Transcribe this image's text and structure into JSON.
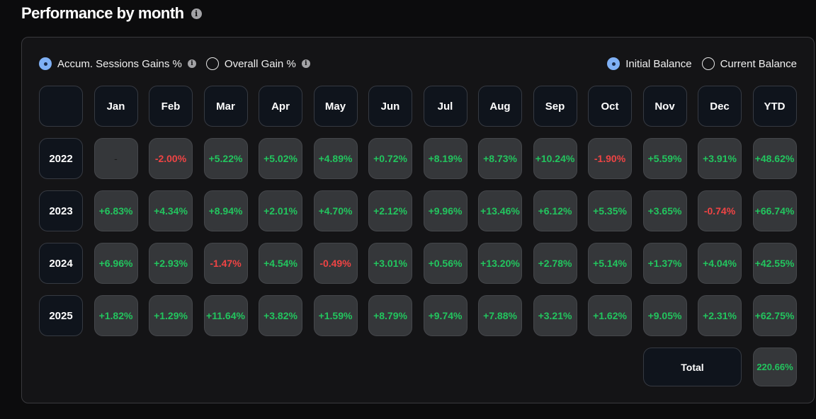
{
  "header": {
    "title": "Performance by month",
    "info_icon": "info-icon"
  },
  "toggles": {
    "left": [
      {
        "label": "Accum. Sessions Gains %",
        "selected": true,
        "has_info": true
      },
      {
        "label": "Overall Gain %",
        "selected": false,
        "has_info": true
      }
    ],
    "right": [
      {
        "label": "Initial Balance",
        "selected": true
      },
      {
        "label": "Current Balance",
        "selected": false
      }
    ]
  },
  "table": {
    "columns": [
      "",
      "Jan",
      "Feb",
      "Mar",
      "Apr",
      "May",
      "Jun",
      "Jul",
      "Aug",
      "Sep",
      "Oct",
      "Nov",
      "Dec",
      "YTD"
    ],
    "rows": [
      {
        "year": "2022",
        "values": [
          "-",
          "-2.00%",
          "+5.22%",
          "+5.02%",
          "+4.89%",
          "+0.72%",
          "+8.19%",
          "+8.73%",
          "+10.24%",
          "-1.90%",
          "+5.59%",
          "+3.91%",
          "+48.62%"
        ]
      },
      {
        "year": "2023",
        "values": [
          "+6.83%",
          "+4.34%",
          "+8.94%",
          "+2.01%",
          "+4.70%",
          "+2.12%",
          "+9.96%",
          "+13.46%",
          "+6.12%",
          "+5.35%",
          "+3.65%",
          "-0.74%",
          "+66.74%"
        ]
      },
      {
        "year": "2024",
        "values": [
          "+6.96%",
          "+2.93%",
          "-1.47%",
          "+4.54%",
          "-0.49%",
          "+3.01%",
          "+0.56%",
          "+13.20%",
          "+2.78%",
          "+5.14%",
          "+1.37%",
          "+4.04%",
          "+42.55%"
        ]
      },
      {
        "year": "2025",
        "values": [
          "+1.82%",
          "+1.29%",
          "+11.64%",
          "+3.82%",
          "+1.59%",
          "+8.79%",
          "+9.74%",
          "+7.88%",
          "+3.21%",
          "+1.62%",
          "+9.05%",
          "+2.31%",
          "+62.75%"
        ]
      }
    ]
  },
  "total": {
    "label": "Total",
    "value": "220.66%"
  },
  "colors": {
    "positive": "#22c55e",
    "negative": "#ef4444",
    "radio_on": "#7fb0f5"
  }
}
